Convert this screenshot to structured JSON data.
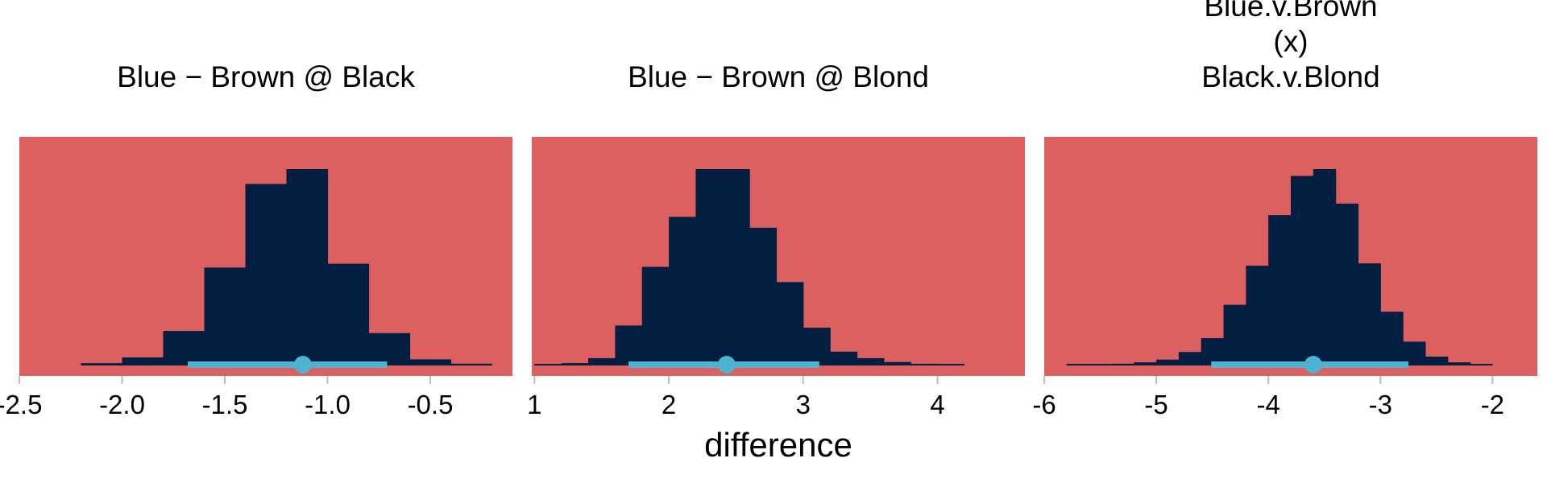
{
  "colors": {
    "panel_background": "#DC605F",
    "histogram_fill": "#021E40",
    "interval": "#4DB3CE",
    "tick": "#BDBDBD"
  },
  "xlabel": "difference",
  "chart_data": [
    {
      "type": "bar",
      "title_lines": [
        "Blue − Brown @ Black"
      ],
      "xlim": [
        -2.5,
        -0.1
      ],
      "xticks": [
        -2.5,
        -2.0,
        -1.5,
        -1.0,
        -0.5
      ],
      "tick_labels": [
        "-2.5",
        "-2.0",
        "-1.5",
        "-1.0",
        "-0.5"
      ],
      "bins": [
        {
          "x0": -2.2,
          "x1": -2.0,
          "value": 6
        },
        {
          "x0": -2.0,
          "x1": -1.8,
          "value": 30
        },
        {
          "x0": -1.8,
          "x1": -1.6,
          "value": 140
        },
        {
          "x0": -1.6,
          "x1": -1.4,
          "value": 403
        },
        {
          "x0": -1.4,
          "x1": -1.2,
          "value": 750
        },
        {
          "x0": -1.2,
          "x1": -1.0,
          "value": 812
        },
        {
          "x0": -1.0,
          "x1": -0.8,
          "value": 419
        },
        {
          "x0": -0.8,
          "x1": -0.6,
          "value": 131
        },
        {
          "x0": -0.6,
          "x1": -0.4,
          "value": 22
        },
        {
          "x0": -0.4,
          "x1": -0.2,
          "value": 4
        }
      ],
      "interval": {
        "low": -1.68,
        "high": -0.71,
        "point": -1.12
      }
    },
    {
      "type": "bar",
      "title_lines": [
        "Blue − Brown @ Blond"
      ],
      "xlim": [
        0.98,
        4.65
      ],
      "xticks": [
        1,
        2,
        3,
        4
      ],
      "tick_labels": [
        "1",
        "2",
        "3",
        "4"
      ],
      "bins": [
        {
          "x0": 1.0,
          "x1": 1.2,
          "value": 2
        },
        {
          "x0": 1.2,
          "x1": 1.4,
          "value": 7
        },
        {
          "x0": 1.4,
          "x1": 1.6,
          "value": 30
        },
        {
          "x0": 1.6,
          "x1": 1.8,
          "value": 180
        },
        {
          "x0": 1.8,
          "x1": 2.0,
          "value": 450
        },
        {
          "x0": 2.0,
          "x1": 2.2,
          "value": 680
        },
        {
          "x0": 2.2,
          "x1": 2.4,
          "value": 900
        },
        {
          "x0": 2.4,
          "x1": 2.6,
          "value": 900
        },
        {
          "x0": 2.6,
          "x1": 2.8,
          "value": 630
        },
        {
          "x0": 2.8,
          "x1": 3.0,
          "value": 380
        },
        {
          "x0": 3.0,
          "x1": 3.2,
          "value": 170
        },
        {
          "x0": 3.2,
          "x1": 3.4,
          "value": 60
        },
        {
          "x0": 3.4,
          "x1": 3.6,
          "value": 30
        },
        {
          "x0": 3.6,
          "x1": 3.8,
          "value": 12
        },
        {
          "x0": 3.8,
          "x1": 4.0,
          "value": 4
        },
        {
          "x0": 4.0,
          "x1": 4.2,
          "value": 1
        }
      ],
      "interval": {
        "low": 1.7,
        "high": 3.12,
        "point": 2.43
      }
    },
    {
      "type": "bar",
      "title_lines": [
        "Blue.v.Brown",
        "(x)",
        "Black.v.Blond"
      ],
      "xlim": [
        -6,
        -1.6
      ],
      "xticks": [
        -6,
        -5,
        -4,
        -3,
        -2
      ],
      "tick_labels": [
        "-6",
        "-5",
        "-4",
        "-3",
        "-2"
      ],
      "bins": [
        {
          "x0": -5.8,
          "x1": -5.6,
          "value": 1
        },
        {
          "x0": -5.6,
          "x1": -5.4,
          "value": 2
        },
        {
          "x0": -5.4,
          "x1": -5.2,
          "value": 4
        },
        {
          "x0": -5.2,
          "x1": -5.0,
          "value": 10
        },
        {
          "x0": -5.0,
          "x1": -4.8,
          "value": 22
        },
        {
          "x0": -4.8,
          "x1": -4.6,
          "value": 55
        },
        {
          "x0": -4.6,
          "x1": -4.4,
          "value": 115
        },
        {
          "x0": -4.4,
          "x1": -4.2,
          "value": 260
        },
        {
          "x0": -4.2,
          "x1": -4.0,
          "value": 430
        },
        {
          "x0": -4.0,
          "x1": -3.8,
          "value": 650
        },
        {
          "x0": -3.8,
          "x1": -3.6,
          "value": 820
        },
        {
          "x0": -3.6,
          "x1": -3.4,
          "value": 850
        },
        {
          "x0": -3.4,
          "x1": -3.2,
          "value": 700
        },
        {
          "x0": -3.2,
          "x1": -3.0,
          "value": 440
        },
        {
          "x0": -3.0,
          "x1": -2.8,
          "value": 230
        },
        {
          "x0": -2.8,
          "x1": -2.6,
          "value": 100
        },
        {
          "x0": -2.6,
          "x1": -2.4,
          "value": 35
        },
        {
          "x0": -2.4,
          "x1": -2.2,
          "value": 10
        },
        {
          "x0": -2.2,
          "x1": -2.0,
          "value": 2
        }
      ],
      "interval": {
        "low": -4.51,
        "high": -2.75,
        "point": -3.6
      }
    }
  ]
}
